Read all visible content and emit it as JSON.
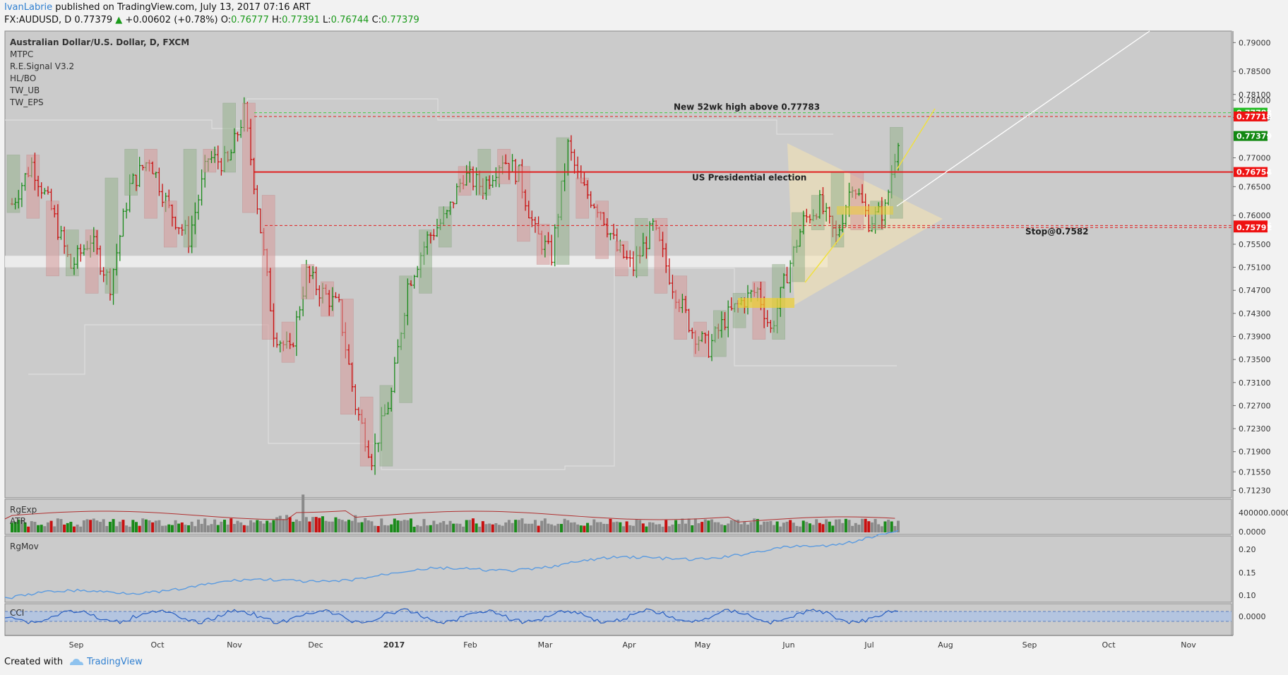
{
  "header": {
    "author": "IvanLabrie",
    "published_text": " published on TradingView.com, July 13, 2017 07:16 ART",
    "symbol": "FX:AUDUSD, D",
    "last": "0.77379",
    "change": "+0.00602 (+0.78%)",
    "open_label": "O:",
    "open": "0.76777",
    "high_label": "H:",
    "high": "0.77391",
    "low_label": "L:",
    "low": "0.76744",
    "close_label": "C:",
    "close": "0.77379"
  },
  "footer": {
    "created_with": "Created with",
    "brand": "TradingView"
  },
  "colors": {
    "bull": "#1a8a1a",
    "bear": "#c81010",
    "plot_bg": "#cbcbcb",
    "bull_box": "#97b38f",
    "bear_box": "#d79a9a",
    "line_blue": "#5b9be0",
    "red_line": "#e02020"
  },
  "chart_data": {
    "type": "candlestick",
    "title": "Australian Dollar/U.S. Dollar, D, FXCM",
    "indicators": [
      "MTPC",
      "R.E.Signal V3.2",
      "HL/BO",
      "TW_UB",
      "TW_EPS"
    ],
    "ylim": [
      0.711,
      0.792
    ],
    "y_ticks": [
      "0.79000",
      "0.78500",
      "0.78100",
      "0.78000",
      "0.77700",
      "0.77000",
      "0.76500",
      "0.76000",
      "0.75500",
      "0.75100",
      "0.74700",
      "0.74300",
      "0.73900",
      "0.73500",
      "0.73100",
      "0.72700",
      "0.72300",
      "0.71900",
      "0.71550",
      "0.71230"
    ],
    "y_tick_values": [
      0.79,
      0.785,
      0.781,
      0.78,
      0.777,
      0.77,
      0.765,
      0.76,
      0.755,
      0.751,
      0.747,
      0.743,
      0.739,
      0.735,
      0.731,
      0.727,
      0.723,
      0.719,
      0.7155,
      0.7123
    ],
    "x_labels": [
      "Sep",
      "Oct",
      "Nov",
      "Dec",
      "2017",
      "Feb",
      "Mar",
      "Apr",
      "May",
      "Jun",
      "Jul",
      "Aug",
      "Sep",
      "Oct",
      "Nov"
    ],
    "price_labels": [
      {
        "value": 0.77783,
        "text": "0.77783",
        "color": "#22bb22"
      },
      {
        "value": 0.77718,
        "text": "0.77718",
        "color": "#ee1111"
      },
      {
        "value": 0.77379,
        "text": "0.77379",
        "color": "#118811"
      },
      {
        "value": 0.76754,
        "text": "0.76754",
        "color": "#ee1111"
      },
      {
        "value": 0.75826,
        "text": "0.75826",
        "color": "#ee1111"
      },
      {
        "value": 0.75791,
        "text": "0.75791",
        "color": "#ee1111"
      }
    ],
    "annotations": [
      {
        "text": "New 52wk high above 0.77783",
        "value": 0.77783
      },
      {
        "text": "US Presidential election",
        "value": 0.76754
      },
      {
        "text": "Stop@0.7582",
        "value": 0.7582
      }
    ],
    "levels": {
      "high52": 0.77783,
      "high52b": 0.77718,
      "election": 0.76754,
      "stop1": 0.75826,
      "stop2": 0.75791
    },
    "ohlc_anchors": [
      {
        "t": 0,
        "c": 0.762
      },
      {
        "t": 6,
        "c": 0.769
      },
      {
        "t": 12,
        "c": 0.761
      },
      {
        "t": 18,
        "c": 0.751
      },
      {
        "t": 24,
        "c": 0.756
      },
      {
        "t": 30,
        "c": 0.748
      },
      {
        "t": 36,
        "c": 0.765
      },
      {
        "t": 42,
        "c": 0.77
      },
      {
        "t": 48,
        "c": 0.761
      },
      {
        "t": 54,
        "c": 0.756
      },
      {
        "t": 60,
        "c": 0.77
      },
      {
        "t": 66,
        "c": 0.769
      },
      {
        "t": 71,
        "c": 0.778
      },
      {
        "t": 75,
        "c": 0.762
      },
      {
        "t": 80,
        "c": 0.74
      },
      {
        "t": 85,
        "c": 0.736
      },
      {
        "t": 90,
        "c": 0.75
      },
      {
        "t": 94,
        "c": 0.747
      },
      {
        "t": 100,
        "c": 0.744
      },
      {
        "t": 105,
        "c": 0.727
      },
      {
        "t": 110,
        "c": 0.718
      },
      {
        "t": 116,
        "c": 0.729
      },
      {
        "t": 121,
        "c": 0.748
      },
      {
        "t": 127,
        "c": 0.756
      },
      {
        "t": 133,
        "c": 0.76
      },
      {
        "t": 138,
        "c": 0.767
      },
      {
        "t": 144,
        "c": 0.765
      },
      {
        "t": 150,
        "c": 0.77
      },
      {
        "t": 155,
        "c": 0.767
      },
      {
        "t": 160,
        "c": 0.757
      },
      {
        "t": 165,
        "c": 0.753
      },
      {
        "t": 170,
        "c": 0.772
      },
      {
        "t": 174,
        "c": 0.765
      },
      {
        "t": 180,
        "c": 0.761
      },
      {
        "t": 185,
        "c": 0.754
      },
      {
        "t": 190,
        "c": 0.751
      },
      {
        "t": 196,
        "c": 0.758
      },
      {
        "t": 202,
        "c": 0.748
      },
      {
        "t": 208,
        "c": 0.74
      },
      {
        "t": 213,
        "c": 0.737
      },
      {
        "t": 218,
        "c": 0.742
      },
      {
        "t": 223,
        "c": 0.745
      },
      {
        "t": 228,
        "c": 0.747
      },
      {
        "t": 232,
        "c": 0.74
      },
      {
        "t": 237,
        "c": 0.75
      },
      {
        "t": 242,
        "c": 0.759
      },
      {
        "t": 247,
        "c": 0.762
      },
      {
        "t": 252,
        "c": 0.756
      },
      {
        "t": 257,
        "c": 0.766
      },
      {
        "t": 262,
        "c": 0.759
      },
      {
        "t": 267,
        "c": 0.761
      },
      {
        "t": 271,
        "c": 0.7738
      }
    ],
    "total_days": 272,
    "panes": [
      {
        "name": "RgExp",
        "sub": "ATR",
        "y_ticks": [
          "400000.0000",
          "0.0000"
        ]
      },
      {
        "name": "RgMov",
        "y_ticks": [
          "0.20",
          "0.15",
          "0.10"
        ]
      },
      {
        "name": "CCI",
        "y_ticks": [
          "0.0000"
        ]
      }
    ]
  }
}
